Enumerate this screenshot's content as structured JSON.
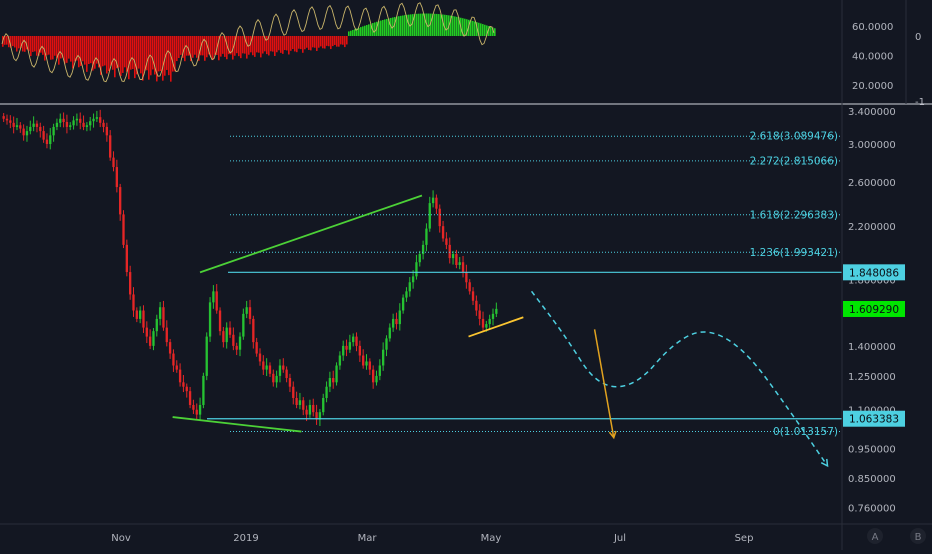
{
  "chart_data": {
    "type": "candlestick",
    "instrument_note": "",
    "price_axis": {
      "scale": "log",
      "ticks": [
        "3.400000",
        "3.000000",
        "2.600000",
        "2.200000",
        "1.800000",
        "1.400000",
        "1.250000",
        "1.100000",
        "0.950000",
        "0.850000",
        "0.760000"
      ],
      "tick_values": [
        3.4,
        3.0,
        2.6,
        2.2,
        1.8,
        1.4,
        1.25,
        1.1,
        0.95,
        0.85,
        0.76
      ],
      "range": [
        0.72,
        3.45
      ]
    },
    "time_axis": {
      "labels": [
        "Nov",
        "2019",
        "Mar",
        "May",
        "Jul",
        "Sep"
      ]
    },
    "price_labels": [
      {
        "value": "1.848086",
        "color": "#4dd0e1"
      },
      {
        "value": "1.609290",
        "color": "#00e600"
      },
      {
        "value": "1.063383",
        "color": "#4dd0e1"
      }
    ],
    "fibonacci": {
      "color": "#4dd0e1",
      "levels": [
        {
          "label": "2.618(3.089476)",
          "price": 3.089476
        },
        {
          "label": "2.272(2.815066)",
          "price": 2.815066
        },
        {
          "label": "1.618(2.296383)",
          "price": 2.296383
        },
        {
          "label": "1.236(1.993421)",
          "price": 1.993421
        },
        {
          "label": "0(1.013157)",
          "price": 1.013157
        }
      ]
    },
    "horizontal_lines": [
      {
        "price": 1.848086,
        "color": "#4dd0e1"
      },
      {
        "price": 1.063383,
        "color": "#4dd0e1"
      }
    ],
    "trendlines": [
      {
        "color": "#4cd137",
        "from": {
          "day": 73,
          "price": 1.848
        },
        "to": {
          "day": 154,
          "price": 2.47
        }
      },
      {
        "color": "#4cd137",
        "from": {
          "day": 63,
          "price": 1.07
        },
        "to": {
          "day": 110,
          "price": 1.013
        }
      },
      {
        "color": "#fbc531",
        "from": {
          "day": 171,
          "price": 1.45
        },
        "to": {
          "day": 191,
          "price": 1.56
        }
      }
    ],
    "projections": [
      {
        "style": "dashed-curve",
        "color": "#4dd0e1",
        "points": [
          [
            194,
            1.72
          ],
          [
            206,
            1.46
          ],
          [
            218,
            1.2
          ],
          [
            232,
            1.2
          ],
          [
            246,
            1.42
          ],
          [
            258,
            1.5
          ],
          [
            272,
            1.38
          ],
          [
            288,
            1.1
          ],
          [
            302,
            0.89
          ]
        ]
      },
      {
        "style": "arrow",
        "color": "#e1a21f",
        "from": {
          "day": 217,
          "price": 1.49
        },
        "to": {
          "day": 224,
          "price": 0.99
        }
      }
    ],
    "candles_close": [
      3.3,
      3.28,
      3.25,
      3.2,
      3.22,
      3.18,
      3.1,
      3.15,
      3.2,
      3.24,
      3.2,
      3.15,
      3.05,
      3.0,
      3.1,
      3.2,
      3.25,
      3.3,
      3.26,
      3.2,
      3.22,
      3.28,
      3.3,
      3.25,
      3.2,
      3.22,
      3.27,
      3.3,
      3.32,
      3.25,
      3.2,
      3.1,
      2.85,
      2.75,
      2.55,
      2.3,
      2.05,
      1.85,
      1.7,
      1.6,
      1.55,
      1.6,
      1.5,
      1.45,
      1.4,
      1.48,
      1.55,
      1.62,
      1.5,
      1.42,
      1.36,
      1.3,
      1.28,
      1.22,
      1.2,
      1.18,
      1.12,
      1.1,
      1.08,
      1.12,
      1.25,
      1.45,
      1.65,
      1.72,
      1.6,
      1.48,
      1.42,
      1.5,
      1.46,
      1.4,
      1.38,
      1.45,
      1.58,
      1.62,
      1.55,
      1.42,
      1.36,
      1.32,
      1.28,
      1.3,
      1.26,
      1.22,
      1.25,
      1.3,
      1.28,
      1.24,
      1.2,
      1.15,
      1.12,
      1.14,
      1.1,
      1.08,
      1.12,
      1.09,
      1.06,
      1.09,
      1.15,
      1.2,
      1.24,
      1.22,
      1.3,
      1.35,
      1.4,
      1.38,
      1.42,
      1.45,
      1.4,
      1.35,
      1.3,
      1.32,
      1.28,
      1.22,
      1.25,
      1.3,
      1.38,
      1.44,
      1.5,
      1.55,
      1.52,
      1.6,
      1.68,
      1.72,
      1.78,
      1.82,
      1.92,
      1.98,
      2.05,
      2.18,
      2.4,
      2.45,
      2.35,
      2.2,
      2.1,
      2.05,
      1.95,
      1.98,
      1.9,
      1.92,
      1.85,
      1.78,
      1.72,
      1.66,
      1.6,
      1.55,
      1.5,
      1.52,
      1.55,
      1.58,
      1.61
    ],
    "candles_start_day": 0,
    "day_scale_note": "",
    "oscillator": {
      "axis_left_ticks": [
        "60.0000",
        "40.0000",
        "20.0000"
      ],
      "axis_left_values": [
        60,
        40,
        20
      ],
      "axis_right_ticks": [
        "0",
        "-1"
      ],
      "histogram_colors": {
        "negative": "#e01010",
        "positive": "#22cc22"
      },
      "line_color": "#c8b46a"
    },
    "bottom_buttons": [
      "A",
      "B"
    ]
  }
}
